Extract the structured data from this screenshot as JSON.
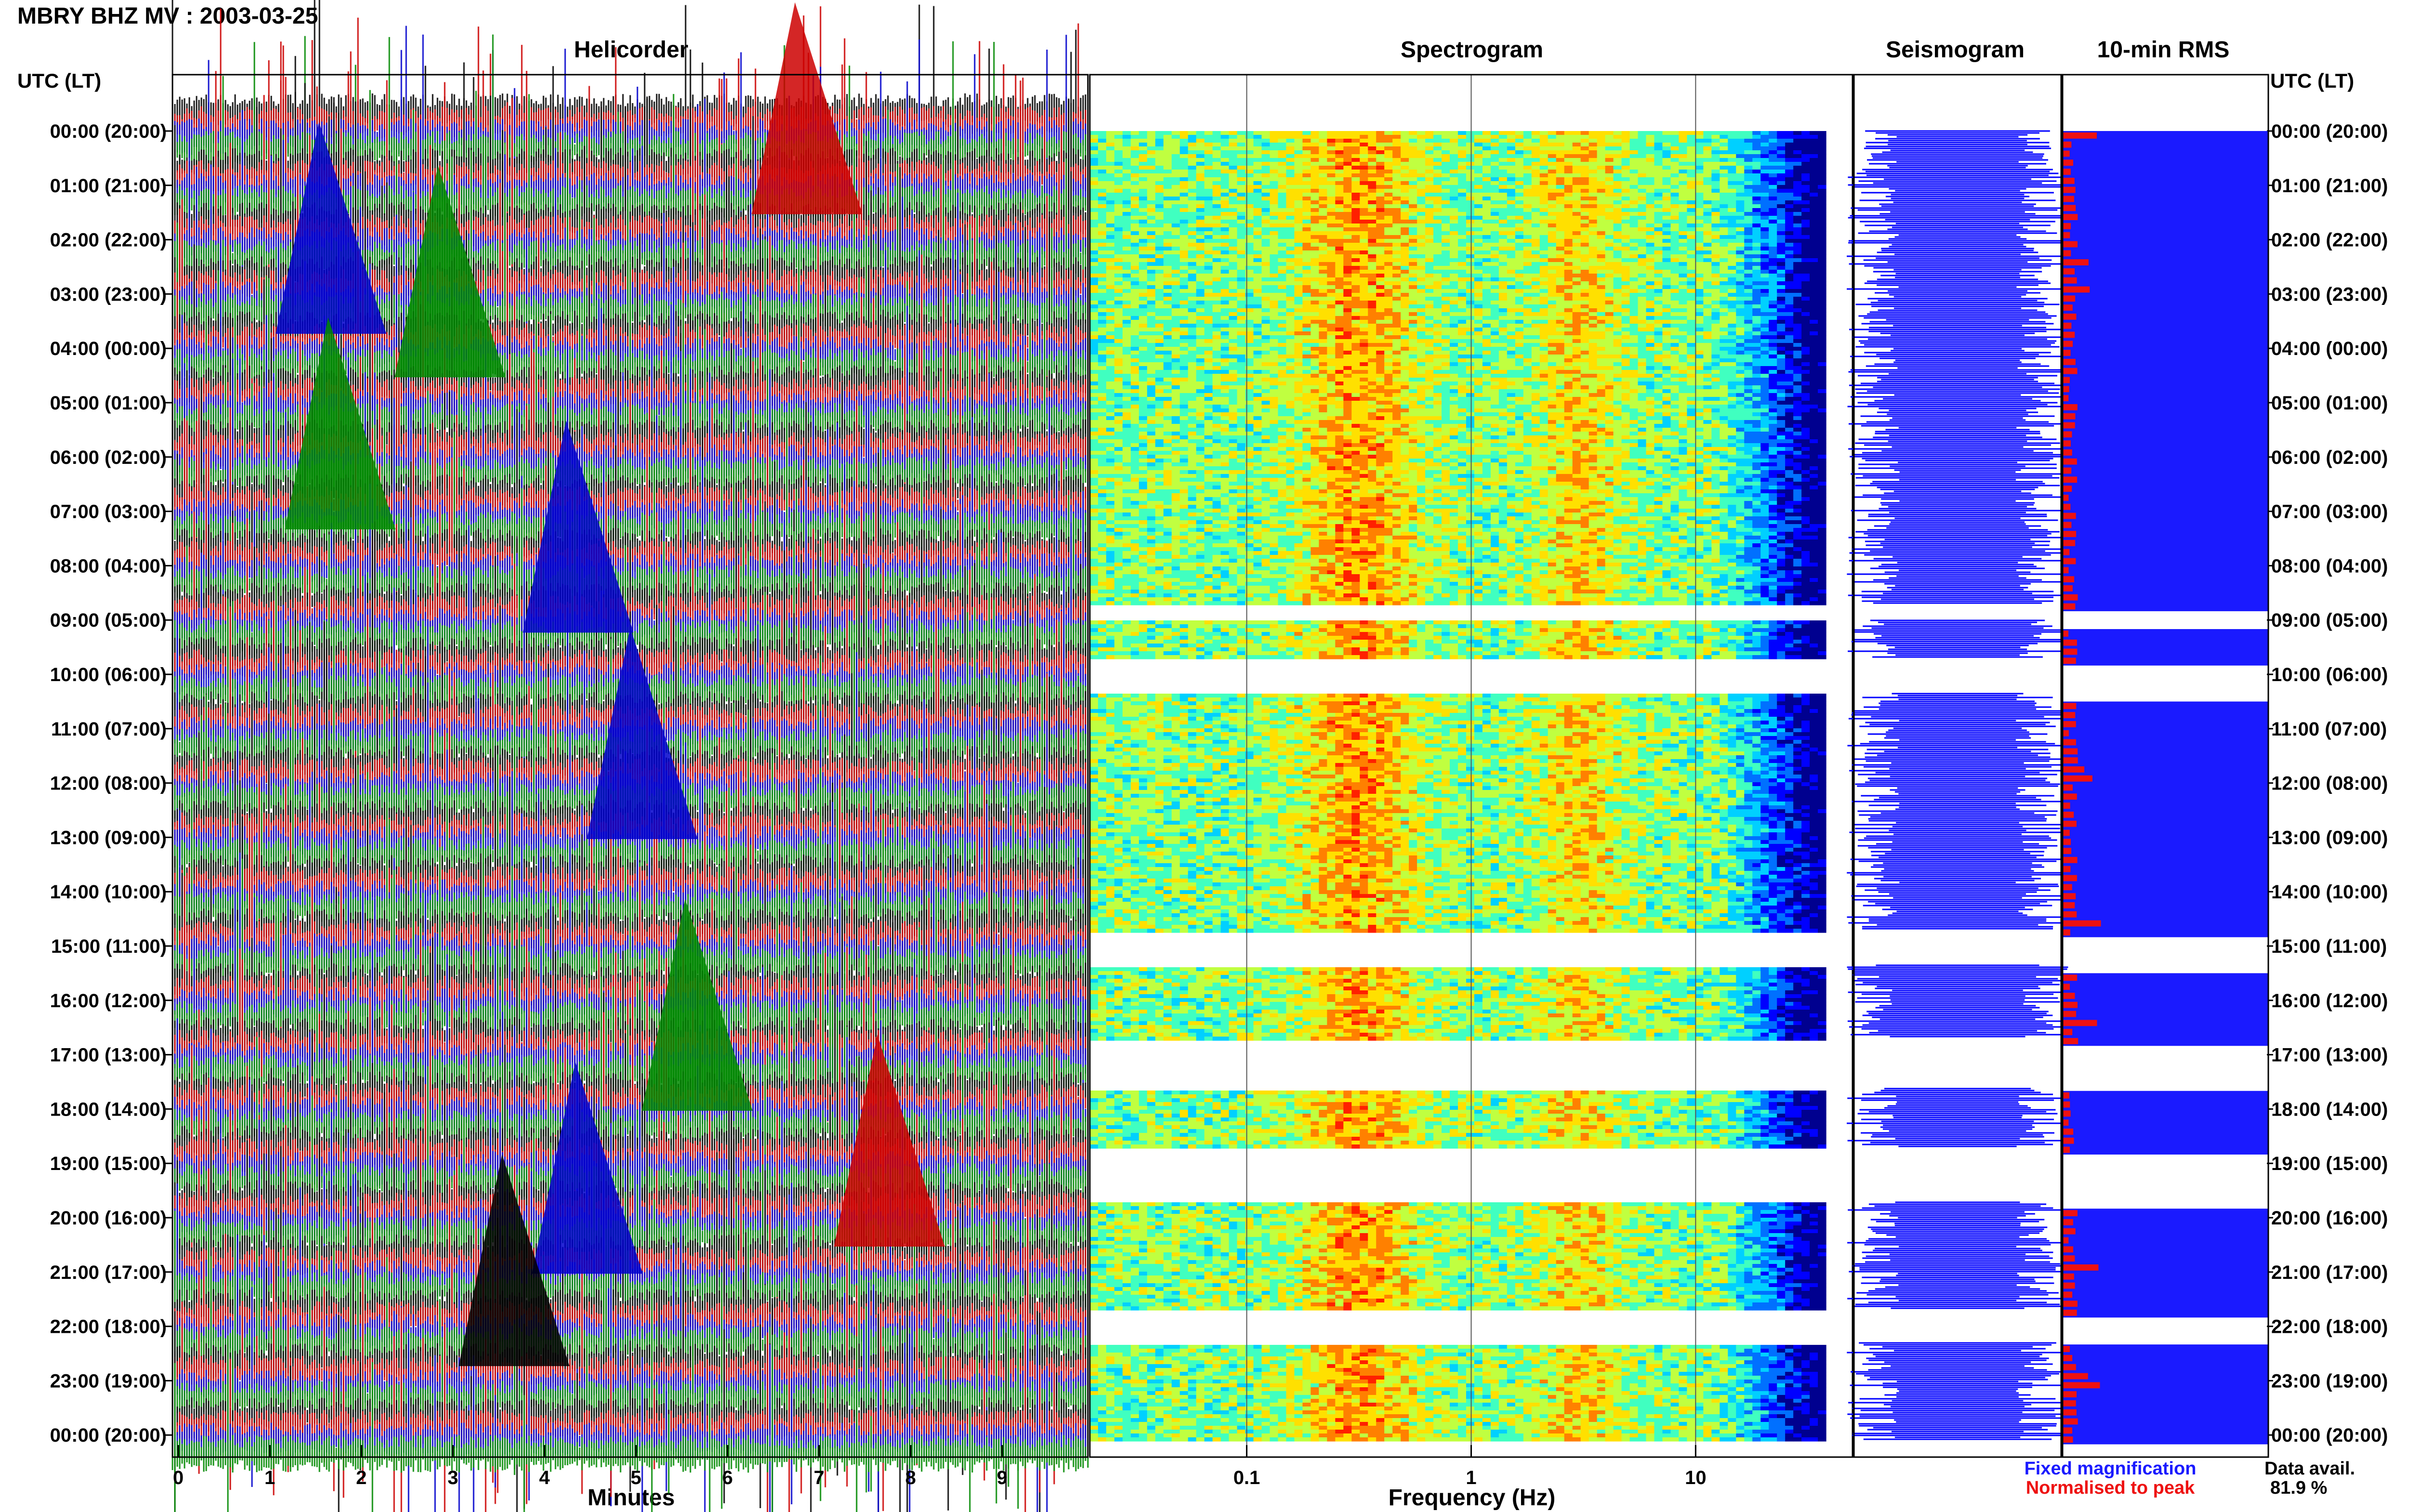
{
  "page": {
    "title": "MBRY BHZ MV : 2003-03-25",
    "row_header_left": "UTC (LT)",
    "row_header_right": "UTC (LT)"
  },
  "panels": {
    "helicorder": "Helicorder",
    "spectrogram": "Spectrogram",
    "seismogram": "Seismogram",
    "rms": "10-min RMS"
  },
  "axes": {
    "helicorder_xlabel": "Minutes",
    "spectrogram_xlabel": "Frequency (Hz)"
  },
  "legend": {
    "fixed": "Fixed magnification",
    "normalised": "Normalised to peak",
    "fixed_color": "#1a1aff",
    "normalised_color": "#ee1111"
  },
  "availability": {
    "label": "Data avail.",
    "value": "81.9 %"
  },
  "chart_data": [
    {
      "type": "line",
      "title": "Helicorder",
      "xlabel": "Minutes",
      "x_ticks": [
        "0",
        "1",
        "2",
        "3",
        "4",
        "5",
        "6",
        "7",
        "8",
        "9"
      ],
      "xlim": [
        0,
        10
      ],
      "trace_colors": [
        "#000000",
        "#cc0000",
        "#0000cc",
        "#008800"
      ],
      "row_labels": [
        "00:00 (20:00)",
        "01:00 (21:00)",
        "02:00 (22:00)",
        "03:00 (23:00)",
        "04:00 (00:00)",
        "05:00 (01:00)",
        "06:00 (02:00)",
        "07:00 (03:00)",
        "08:00 (04:00)",
        "09:00 (05:00)",
        "10:00 (06:00)",
        "11:00 (07:00)",
        "12:00 (08:00)",
        "13:00 (09:00)",
        "14:00 (10:00)",
        "15:00 (11:00)",
        "16:00 (12:00)",
        "17:00 (13:00)",
        "18:00 (14:00)",
        "19:00 (15:00)",
        "20:00 (16:00)",
        "21:00 (17:00)",
        "22:00 (18:00)",
        "23:00 (19:00)",
        "00:00 (20:00)"
      ]
    },
    {
      "type": "heatmap",
      "title": "Spectrogram",
      "xlabel": "Frequency (Hz)",
      "x_scale": "log",
      "x_ticks": [
        "0.1",
        "1",
        "10"
      ],
      "xlim": [
        0.02,
        50
      ],
      "data_gaps_utc_hours": [
        [
          8.7,
          9.0
        ],
        [
          9.7,
          10.35
        ],
        [
          14.7,
          15.35
        ],
        [
          16.7,
          17.6
        ],
        [
          18.7,
          19.7
        ],
        [
          21.7,
          22.3
        ]
      ]
    },
    {
      "type": "line",
      "title": "Seismogram"
    },
    {
      "type": "bar",
      "title": "10-min RMS",
      "colors": [
        "#1a1aff",
        "#ee1111"
      ]
    }
  ]
}
